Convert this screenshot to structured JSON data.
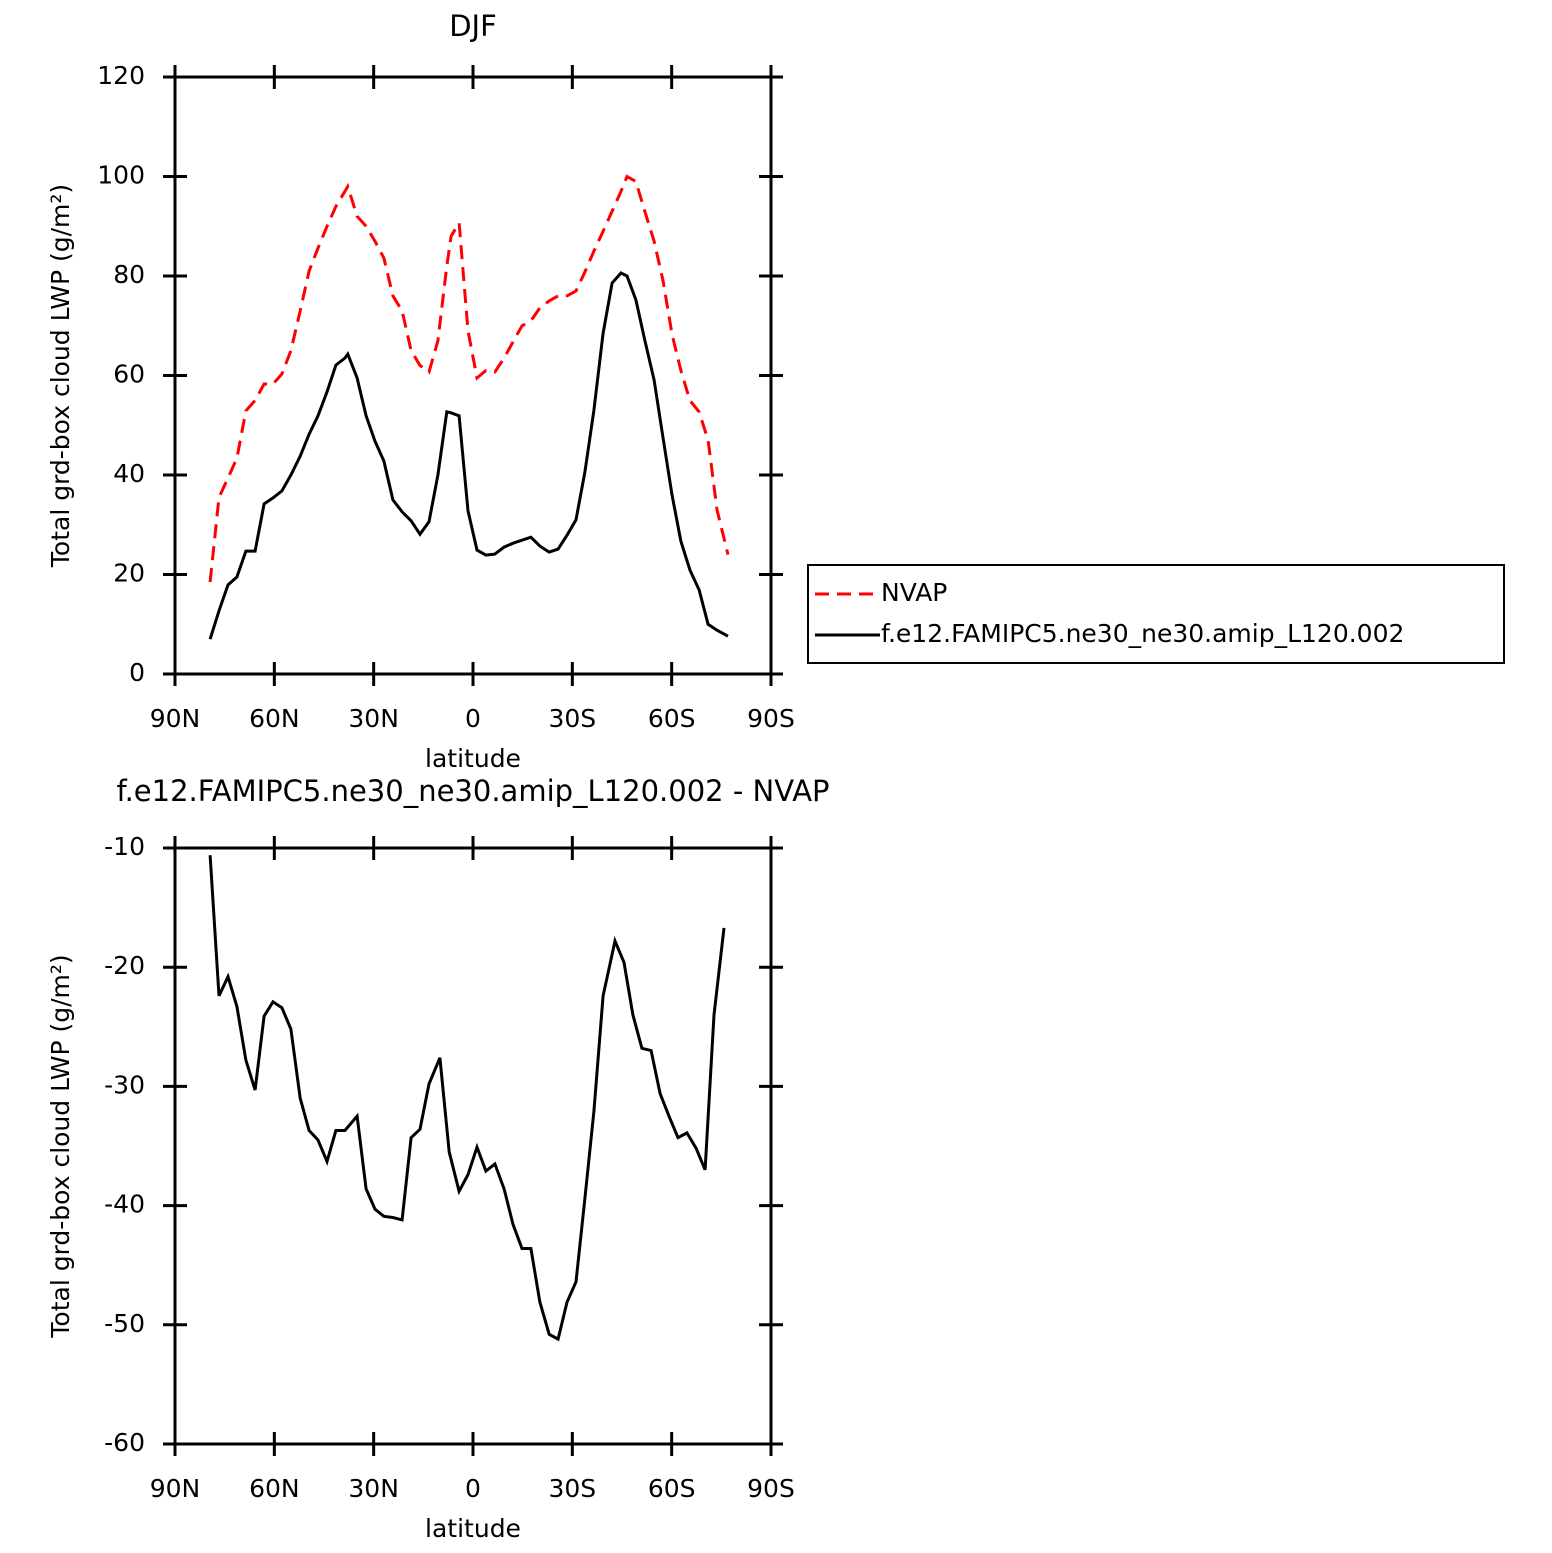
{
  "chart_data": [
    {
      "type": "line",
      "title": "DJF",
      "xlabel": "latitude",
      "ylabel": "Total grd-box cloud LWP (g/m²)",
      "x": [
        79.4,
        76.7,
        74.0,
        71.3,
        68.6,
        65.8,
        63.1,
        60.4,
        57.7,
        55.0,
        52.2,
        49.5,
        46.8,
        44.1,
        41.4,
        38.7,
        37.8,
        35.0,
        32.3,
        29.6,
        26.9,
        24.2,
        21.4,
        18.7,
        16.0,
        13.3,
        10.6,
        7.9,
        6.6,
        4.2,
        1.5,
        -1.2,
        -3.9,
        -6.6,
        -9.4,
        -12.1,
        -14.8,
        -17.5,
        -20.2,
        -23.0,
        -25.7,
        -28.4,
        -31.1,
        -33.8,
        -36.5,
        -39.3,
        -42.0,
        -44.7,
        -46.5,
        -49.2,
        -51.9,
        -54.7,
        -57.4,
        -60.1,
        -62.8,
        -65.5,
        -68.3,
        -71.0,
        -73.7,
        -77.0
      ],
      "series": [
        {
          "name": "NVAP",
          "color": "#ff0000",
          "linestyle": "dashed",
          "values": [
            18.5,
            35.5,
            39.4,
            43.4,
            52.9,
            55,
            58.3,
            58.3,
            60.3,
            65,
            73,
            81,
            85.6,
            90,
            94,
            97,
            98,
            92,
            90,
            87,
            83.6,
            76,
            73,
            65,
            62,
            60.7,
            67,
            82,
            88,
            90.7,
            69,
            59.5,
            61,
            60.7,
            63.5,
            66.8,
            70,
            71,
            73.6,
            75,
            76,
            76,
            77,
            80.8,
            85,
            89,
            93,
            97,
            100,
            99,
            93,
            87,
            79,
            68.3,
            61,
            55,
            52.7,
            47,
            33,
            24
          ]
        },
        {
          "name": "f.e12.FAMIPC5.ne30_ne30.amip_L120.002",
          "color": "#000000",
          "linestyle": "solid",
          "values": [
            7,
            12.7,
            17.9,
            19.5,
            24.7,
            24.7,
            34.2,
            35.4,
            36.8,
            40,
            43.8,
            48.2,
            51.9,
            56.7,
            62.1,
            63.5,
            64.3,
            59.5,
            51.9,
            46.8,
            42.8,
            35,
            32.6,
            30.8,
            28.1,
            30.6,
            40,
            52.7,
            52.5,
            51.9,
            32.8,
            24.9,
            23.9,
            24.1,
            25.5,
            26.3,
            26.9,
            27.5,
            25.7,
            24.5,
            25.1,
            27.9,
            31,
            40.6,
            53,
            68.5,
            78.6,
            80.6,
            80,
            75.2,
            67.1,
            59.1,
            47.4,
            36,
            26.7,
            20.9,
            16.9,
            10,
            8.8,
            7.6
          ]
        }
      ],
      "xlim": [
        90,
        -90
      ],
      "ylim": [
        0,
        120
      ],
      "xticks": [
        {
          "value": 90,
          "label": "90N"
        },
        {
          "value": 60,
          "label": "60N"
        },
        {
          "value": 30,
          "label": "30N"
        },
        0,
        {
          "value": -30,
          "label": "30S"
        },
        {
          "value": -60,
          "label": "60S"
        },
        {
          "value": -90,
          "label": "90S"
        }
      ],
      "yticks": [
        0,
        20,
        40,
        60,
        80,
        100,
        120
      ],
      "legend": "right"
    },
    {
      "type": "line",
      "title": "f.e12.FAMIPC5.ne30_ne30.amip_L120.002 - NVAP",
      "xlabel": "latitude",
      "ylabel": "Total grd-box cloud LWP (g/m²)",
      "x": [
        79.4,
        76.7,
        74.0,
        71.3,
        68.6,
        65.8,
        63.1,
        60.4,
        57.7,
        55.0,
        52.2,
        49.5,
        46.8,
        44.1,
        41.4,
        38.7,
        35.0,
        32.3,
        29.6,
        26.9,
        24.2,
        21.4,
        18.7,
        16.0,
        13.3,
        10.0,
        7.2,
        4.2,
        1.5,
        -1.2,
        -3.9,
        -6.6,
        -9.4,
        -12.1,
        -14.8,
        -17.5,
        -20.2,
        -23.0,
        -25.7,
        -28.4,
        -31.1,
        -33.8,
        -36.5,
        -39.3,
        -42.9,
        -45.6,
        -48.3,
        -51.0,
        -53.8,
        -56.5,
        -59.2,
        -61.9,
        -64.6,
        -67.4,
        -70.1,
        -72.8,
        -75.8
      ],
      "series": [
        {
          "color": "#000000",
          "linestyle": "solid",
          "values": [
            -10.6,
            -22.4,
            -20.8,
            -23.3,
            -27.8,
            -30.3,
            -24.1,
            -22.9,
            -23.4,
            -25.2,
            -31,
            -33.7,
            -34.5,
            -36.3,
            -33.7,
            -33.7,
            -32.5,
            -38.6,
            -40.3,
            -40.9,
            -41,
            -41.2,
            -34.3,
            -33.6,
            -29.8,
            -27.6,
            -35.5,
            -38.8,
            -37.4,
            -35.1,
            -37.1,
            -36.5,
            -38.6,
            -41.6,
            -43.6,
            -43.6,
            -48.1,
            -50.8,
            -51.2,
            -48.1,
            -46.4,
            -39.4,
            -32.1,
            -22.4,
            -17.8,
            -19.6,
            -24,
            -26.8,
            -27,
            -30.6,
            -32.5,
            -34.3,
            -33.9,
            -35.2,
            -37,
            -24,
            -16.7
          ]
        }
      ],
      "xlim": [
        90,
        -90
      ],
      "ylim": [
        -60,
        -10
      ],
      "xticks": [
        {
          "value": 90,
          "label": "90N"
        },
        {
          "value": 60,
          "label": "60N"
        },
        {
          "value": 30,
          "label": "30N"
        },
        0,
        {
          "value": -30,
          "label": "30S"
        },
        {
          "value": -60,
          "label": "60S"
        },
        {
          "value": -90,
          "label": "90S"
        }
      ],
      "yticks": [
        -60,
        -50,
        -40,
        -30,
        -20,
        -10
      ]
    }
  ]
}
